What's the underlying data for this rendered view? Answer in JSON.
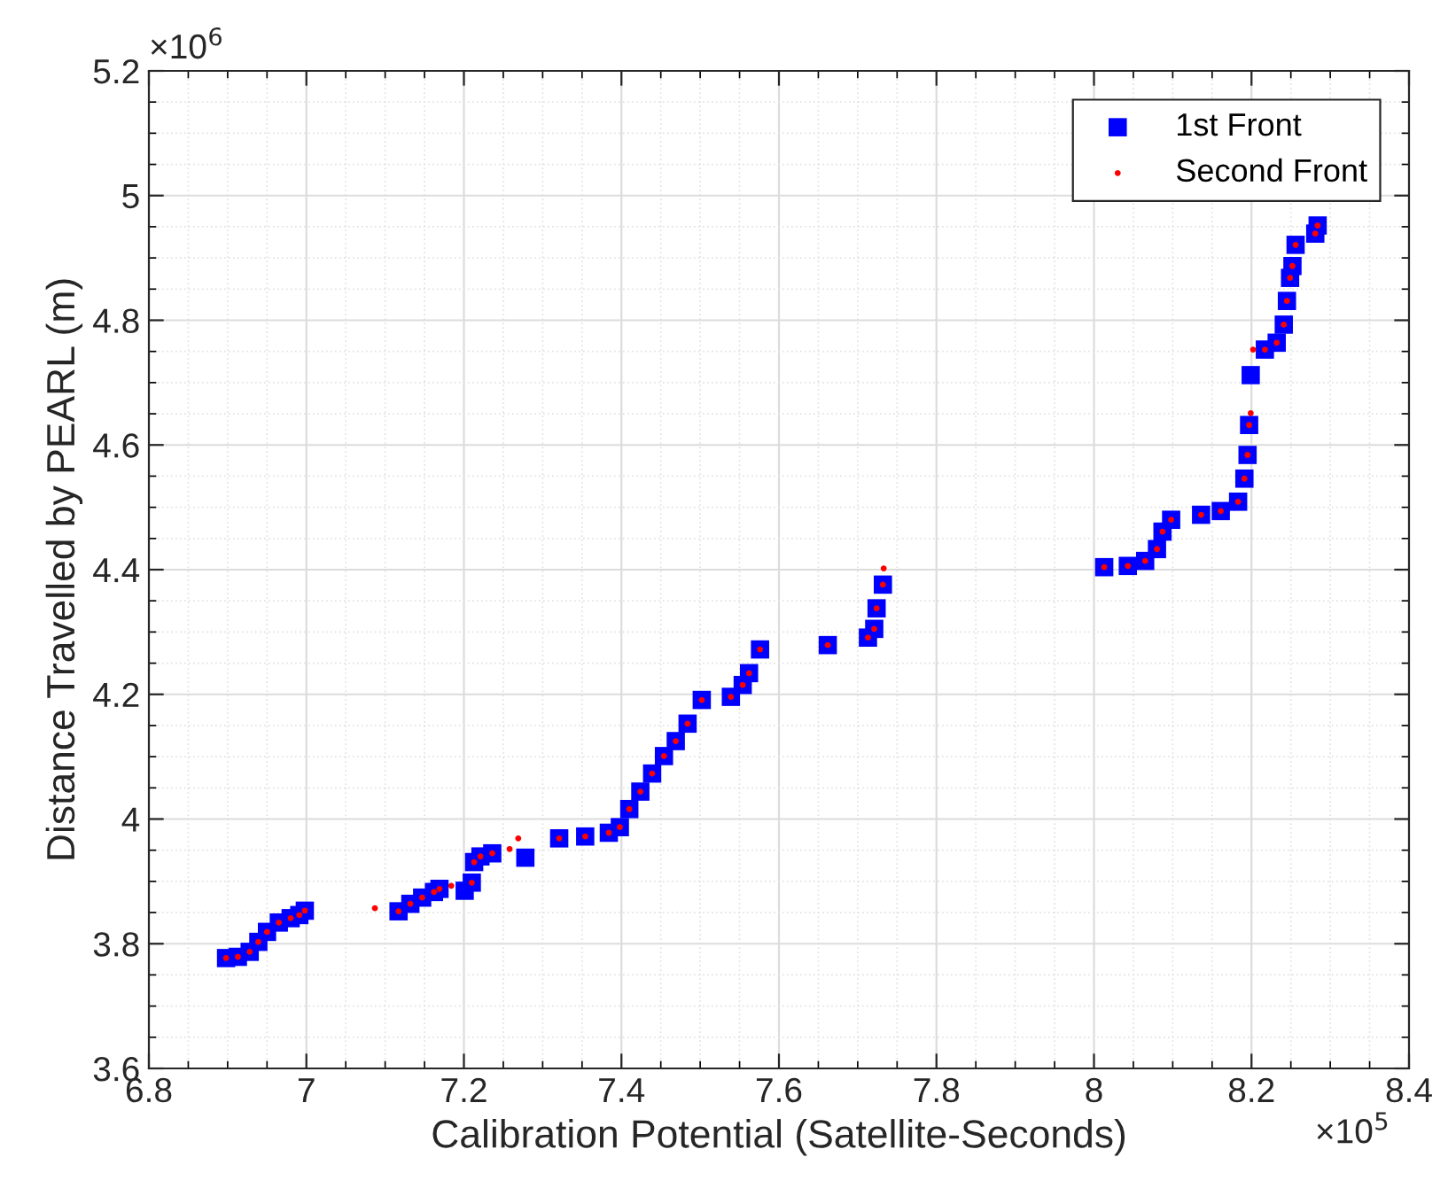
{
  "chart_data": {
    "type": "scatter",
    "xlabel": "Calibration Potential (Satellite-Seconds)",
    "ylabel": "Distance Travelled by PEARL (m)",
    "xlim": [
      6.8,
      8.4
    ],
    "xticks": [
      6.8,
      7,
      7.2,
      7.4,
      7.6,
      7.8,
      8,
      8.2,
      8.4
    ],
    "ylim": [
      3.6,
      5.2
    ],
    "yticks": [
      3.6,
      3.8,
      4,
      4.2,
      4.4,
      4.6,
      4.8,
      5,
      5.2
    ],
    "grid": true,
    "legend": "top right",
    "annotations": [
      "×10$^{6}$",
      "×10$^{5}$"
    ],
    "series": [
      {
        "name": "1st Front",
        "color": "#0000ff",
        "marker": "square",
        "x": [
          6.898,
          6.913,
          6.928,
          6.939,
          6.95,
          6.965,
          6.98,
          6.991,
          6.998,
          7.117,
          7.132,
          7.147,
          7.162,
          7.169,
          7.201,
          7.21,
          7.213,
          7.221,
          7.236,
          7.278,
          7.321,
          7.354,
          7.384,
          7.398,
          7.41,
          7.424,
          7.439,
          7.454,
          7.469,
          7.484,
          7.502,
          7.539,
          7.554,
          7.562,
          7.576,
          7.662,
          7.713,
          7.721,
          7.724,
          7.732,
          8.013,
          8.043,
          8.065,
          8.08,
          8.087,
          8.098,
          8.136,
          8.161,
          8.183,
          8.191,
          8.195,
          8.197,
          8.199,
          8.217,
          8.232,
          8.241,
          8.245,
          8.249,
          8.252,
          8.256,
          8.281,
          8.284
        ],
        "values": [
          3.777,
          3.779,
          3.787,
          3.803,
          3.819,
          3.834,
          3.841,
          3.846,
          3.853,
          3.852,
          3.864,
          3.874,
          3.883,
          3.888,
          3.885,
          3.898,
          3.931,
          3.94,
          3.945,
          3.938,
          3.969,
          3.972,
          3.978,
          3.987,
          4.016,
          4.044,
          4.073,
          4.101,
          4.125,
          4.153,
          4.191,
          4.196,
          4.215,
          4.234,
          4.272,
          4.279,
          4.291,
          4.305,
          4.338,
          4.376,
          4.404,
          4.406,
          4.414,
          4.433,
          4.461,
          4.48,
          4.488,
          4.494,
          4.509,
          4.546,
          4.584,
          4.632,
          4.712,
          4.753,
          4.764,
          4.793,
          4.831,
          4.868,
          4.887,
          4.921,
          4.939,
          4.952
        ]
      },
      {
        "name": "Second Front",
        "color": "#ff0000",
        "marker": "circle",
        "x": [
          6.898,
          6.913,
          6.928,
          6.939,
          6.95,
          6.965,
          6.98,
          6.991,
          6.998,
          7.087,
          7.117,
          7.132,
          7.147,
          7.162,
          7.169,
          7.184,
          7.21,
          7.213,
          7.221,
          7.236,
          7.258,
          7.269,
          7.321,
          7.354,
          7.384,
          7.398,
          7.41,
          7.424,
          7.439,
          7.454,
          7.469,
          7.484,
          7.502,
          7.539,
          7.554,
          7.562,
          7.576,
          7.662,
          7.713,
          7.721,
          7.724,
          7.732,
          7.733,
          8.013,
          8.043,
          8.065,
          8.08,
          8.087,
          8.098,
          8.136,
          8.161,
          8.183,
          8.191,
          8.195,
          8.197,
          8.199,
          8.202,
          8.217,
          8.232,
          8.241,
          8.245,
          8.249,
          8.252,
          8.256,
          8.281,
          8.284
        ],
        "values": [
          3.777,
          3.779,
          3.787,
          3.803,
          3.819,
          3.834,
          3.841,
          3.846,
          3.853,
          3.857,
          3.852,
          3.864,
          3.874,
          3.883,
          3.888,
          3.893,
          3.898,
          3.931,
          3.94,
          3.945,
          3.952,
          3.969,
          3.969,
          3.972,
          3.978,
          3.987,
          4.016,
          4.044,
          4.073,
          4.101,
          4.125,
          4.153,
          4.191,
          4.196,
          4.215,
          4.234,
          4.272,
          4.279,
          4.291,
          4.305,
          4.338,
          4.376,
          4.402,
          4.404,
          4.406,
          4.414,
          4.433,
          4.461,
          4.48,
          4.488,
          4.494,
          4.509,
          4.546,
          4.584,
          4.632,
          4.651,
          4.753,
          4.753,
          4.764,
          4.793,
          4.831,
          4.868,
          4.887,
          4.921,
          4.939,
          4.952
        ]
      }
    ]
  }
}
